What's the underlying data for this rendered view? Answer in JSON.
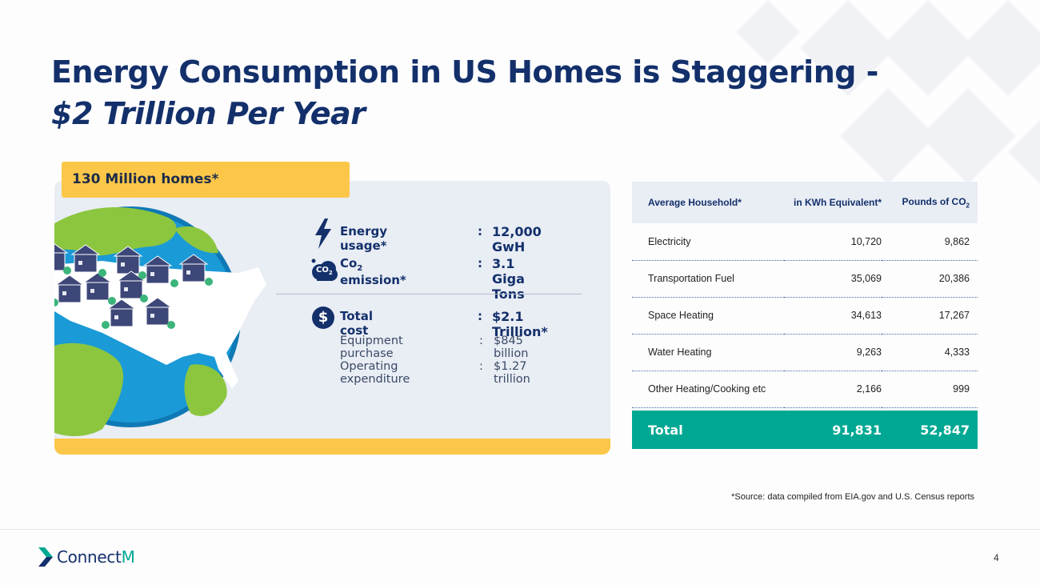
{
  "title": {
    "line1": "Energy Consumption in US Homes is Staggering -",
    "line2": "$2 Trillion Per Year"
  },
  "homes_tag": "130 Million homes*",
  "stats": {
    "energy": {
      "label": "Energy usage*",
      "colon": ":",
      "value": "12,000 GwH",
      "icon": "lightning-bolt-icon"
    },
    "co2": {
      "label_prefix": "Co",
      "label_sub": "2",
      "label_suffix": " emission*",
      "colon": ":",
      "value": "3.1 Giga Tons",
      "icon": "co2-cloud-icon",
      "icon_text": "CO",
      "icon_sub": "2"
    },
    "total": {
      "label": "Total cost",
      "colon": ":",
      "value": "$2.1 Trillion*",
      "icon": "dollar-icon",
      "icon_text": "$"
    },
    "equipment": {
      "label": "Equipment purchase",
      "colon": ":",
      "value": "$845 billion"
    },
    "operating": {
      "label": "Operating expenditure",
      "colon": ":",
      "value": "$1.27 trillion"
    }
  },
  "table": {
    "headers": {
      "col1": "Average Household*",
      "col2": "in KWh Equivalent*",
      "col3_prefix": "Pounds of CO",
      "col3_sub": "2"
    },
    "rows": [
      {
        "name": "Electricity",
        "kwh": "10,720",
        "co2": "9,862"
      },
      {
        "name": "Transportation Fuel",
        "kwh": "35,069",
        "co2": "20,386"
      },
      {
        "name": "Space Heating",
        "kwh": "34,613",
        "co2": "17,267"
      },
      {
        "name": "Water Heating",
        "kwh": "9,263",
        "co2": "4,333"
      },
      {
        "name": "Other Heating/Cooking etc",
        "kwh": "2,166",
        "co2": "999"
      }
    ],
    "total": {
      "name": "Total",
      "kwh": "91,831",
      "co2": "52,847"
    }
  },
  "source": "*Source: data compiled from EIA.gov and U.S. Census reports",
  "logo": {
    "text_main": "Connect",
    "text_accent": "M"
  },
  "page_number": "4",
  "colors": {
    "navy": "#13306b",
    "yellow": "#fcc749",
    "teal": "#00a893",
    "panel": "#e9edf4"
  }
}
